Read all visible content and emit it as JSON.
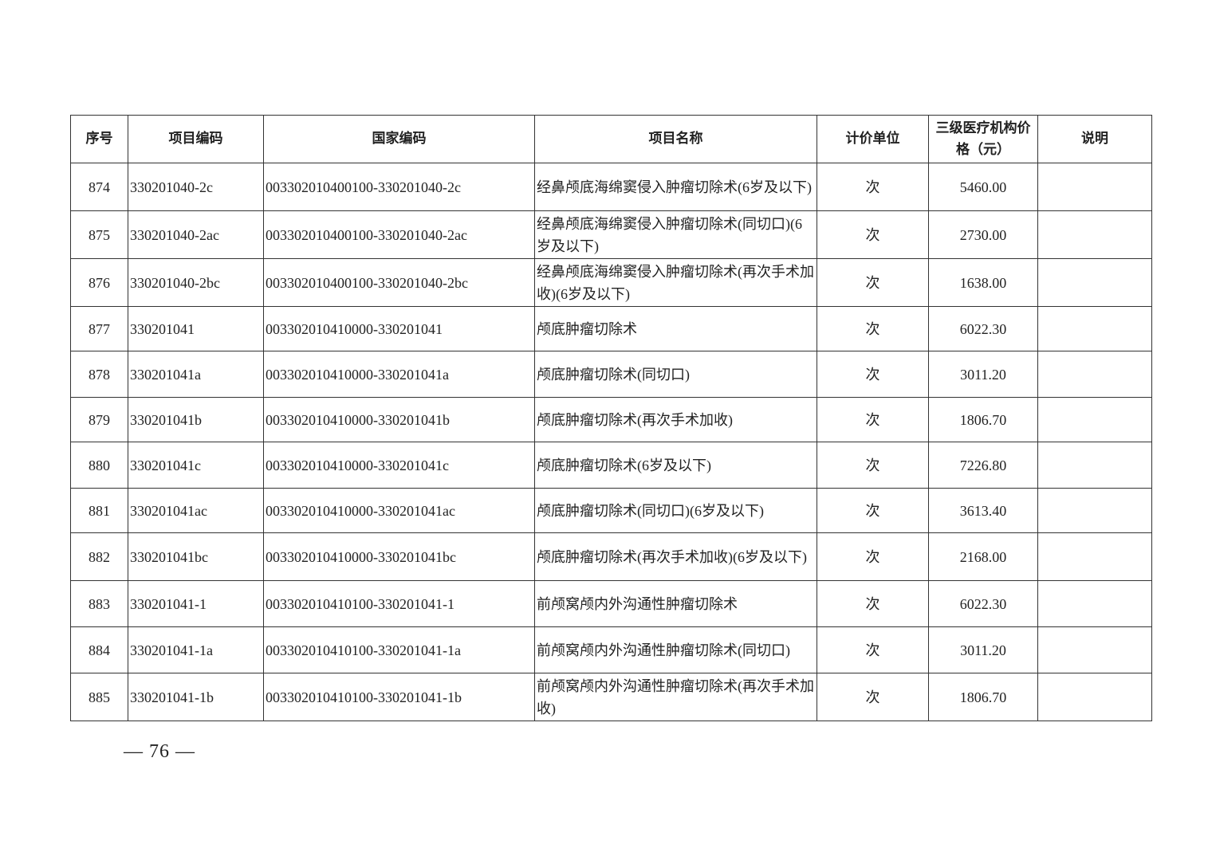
{
  "table": {
    "headers": [
      "序号",
      "项目编码",
      "国家编码",
      "项目名称",
      "计价单位",
      "三级医疗机构价格（元）",
      "说明"
    ],
    "rows": [
      {
        "no": "874",
        "code": "330201040-2c",
        "national": "003302010400100-330201040-2c",
        "name": "经鼻颅底海绵窦侵入肿瘤切除术(6岁及以下)",
        "unit": "次",
        "price": "5460.00",
        "note": ""
      },
      {
        "no": "875",
        "code": "330201040-2ac",
        "national": "003302010400100-330201040-2ac",
        "name": "经鼻颅底海绵窦侵入肿瘤切除术(同切口)(6岁及以下)",
        "unit": "次",
        "price": "2730.00",
        "note": ""
      },
      {
        "no": "876",
        "code": "330201040-2bc",
        "national": "003302010400100-330201040-2bc",
        "name": "经鼻颅底海绵窦侵入肿瘤切除术(再次手术加收)(6岁及以下)",
        "unit": "次",
        "price": "1638.00",
        "note": ""
      },
      {
        "no": "877",
        "code": "330201041",
        "national": "003302010410000-330201041",
        "name": "颅底肿瘤切除术",
        "unit": "次",
        "price": "6022.30",
        "note": ""
      },
      {
        "no": "878",
        "code": "330201041a",
        "national": "003302010410000-330201041a",
        "name": "颅底肿瘤切除术(同切口)",
        "unit": "次",
        "price": "3011.20",
        "note": ""
      },
      {
        "no": "879",
        "code": "330201041b",
        "national": "003302010410000-330201041b",
        "name": "颅底肿瘤切除术(再次手术加收)",
        "unit": "次",
        "price": "1806.70",
        "note": ""
      },
      {
        "no": "880",
        "code": "330201041c",
        "national": "003302010410000-330201041c",
        "name": "颅底肿瘤切除术(6岁及以下)",
        "unit": "次",
        "price": "7226.80",
        "note": ""
      },
      {
        "no": "881",
        "code": "330201041ac",
        "national": "003302010410000-330201041ac",
        "name": "颅底肿瘤切除术(同切口)(6岁及以下)",
        "unit": "次",
        "price": "3613.40",
        "note": ""
      },
      {
        "no": "882",
        "code": "330201041bc",
        "national": "003302010410000-330201041bc",
        "name": "颅底肿瘤切除术(再次手术加收)(6岁及以下)",
        "unit": "次",
        "price": "2168.00",
        "note": ""
      },
      {
        "no": "883",
        "code": "330201041-1",
        "national": "003302010410100-330201041-1",
        "name": "前颅窝颅内外沟通性肿瘤切除术",
        "unit": "次",
        "price": "6022.30",
        "note": ""
      },
      {
        "no": "884",
        "code": "330201041-1a",
        "national": "003302010410100-330201041-1a",
        "name": "前颅窝颅内外沟通性肿瘤切除术(同切口)",
        "unit": "次",
        "price": "3011.20",
        "note": ""
      },
      {
        "no": "885",
        "code": "330201041-1b",
        "national": "003302010410100-330201041-1b",
        "name": "前颅窝颅内外沟通性肿瘤切除术(再次手术加收)",
        "unit": "次",
        "price": "1806.70",
        "note": ""
      }
    ]
  },
  "footer": {
    "page": "— 76 —"
  }
}
